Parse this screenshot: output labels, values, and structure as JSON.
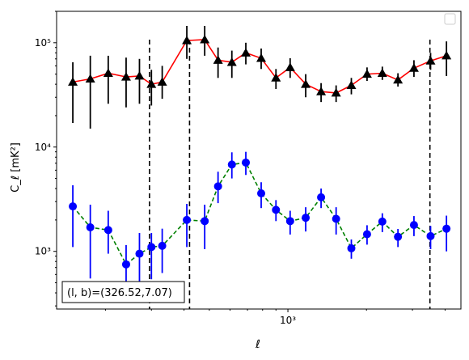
{
  "chart_data": {
    "type": "scatter",
    "title": "",
    "xlabel": "ℓ",
    "ylabel": "C_ℓ  [mK²]",
    "xscale": "log",
    "yscale": "log",
    "xlim": [
      130,
      4600
    ],
    "ylim": [
      280,
      200000
    ],
    "x_ticks": [
      1000
    ],
    "x_tick_labels": [
      "10³"
    ],
    "y_ticks": [
      1000,
      10000,
      100000
    ],
    "y_tick_labels": [
      "10³",
      "10⁴",
      "10⁵"
    ],
    "grid": false,
    "legend": {
      "placement": "top-right",
      "entries": []
    },
    "annotation": "(l, b)=(326.52,7.07)",
    "vlines": [
      295,
      420,
      3500
    ],
    "series": [
      {
        "marker": "triangle",
        "marker_color": "#000000",
        "line_color": "#ff0000",
        "line_style": "solid",
        "x": [
          150,
          175,
          205,
          240,
          270,
          300,
          330,
          410,
          480,
          540,
          610,
          690,
          790,
          900,
          1020,
          1170,
          1340,
          1530,
          1750,
          2010,
          2300,
          2640,
          3040,
          3520,
          4050
        ],
        "y": [
          42000,
          45000,
          51000,
          47000,
          48000,
          40000,
          42000,
          105000,
          107000,
          68000,
          65000,
          80000,
          71000,
          46000,
          58000,
          40000,
          34000,
          33000,
          39000,
          50000,
          51000,
          44000,
          57000,
          67000,
          75000
        ],
        "y_lo": [
          17000,
          15000,
          26000,
          24000,
          26000,
          25000,
          29000,
          70000,
          75000,
          46000,
          46000,
          62000,
          56000,
          36000,
          46000,
          30000,
          27000,
          27000,
          32000,
          43000,
          44000,
          38000,
          47000,
          55000,
          48000
        ],
        "y_hi": [
          65000,
          75000,
          75000,
          72000,
          70000,
          55000,
          60000,
          145000,
          145000,
          90000,
          84000,
          100000,
          88000,
          56000,
          71000,
          50000,
          41000,
          39000,
          46000,
          58000,
          59000,
          51000,
          68000,
          80000,
          103000
        ]
      },
      {
        "marker": "circle",
        "marker_color": "#0000ff",
        "line_color": "#008000",
        "line_style": "dashed",
        "x": [
          150,
          175,
          205,
          240,
          270,
          300,
          330,
          410,
          480,
          540,
          610,
          690,
          790,
          900,
          1020,
          1170,
          1340,
          1530,
          1750,
          2010,
          2300,
          2640,
          3040,
          3520,
          4050
        ],
        "y": [
          2700,
          1700,
          1600,
          750,
          950,
          1100,
          1130,
          2000,
          1950,
          4200,
          6800,
          7100,
          3600,
          2500,
          1950,
          2100,
          3300,
          2050,
          1070,
          1460,
          1930,
          1380,
          1790,
          1400,
          1650
        ],
        "y_lo": [
          1100,
          550,
          950,
          340,
          480,
          540,
          620,
          1100,
          1050,
          2900,
          5000,
          5400,
          2600,
          1950,
          1450,
          1550,
          2600,
          1450,
          850,
          1160,
          1530,
          1100,
          1400,
          1050,
          1000
        ],
        "y_hi": [
          4300,
          2800,
          2450,
          1150,
          1500,
          1500,
          1650,
          2850,
          2800,
          5800,
          8900,
          9000,
          4600,
          3100,
          2450,
          2650,
          4000,
          2650,
          1300,
          1780,
          2320,
          1640,
          2180,
          1750,
          2200
        ]
      }
    ]
  }
}
